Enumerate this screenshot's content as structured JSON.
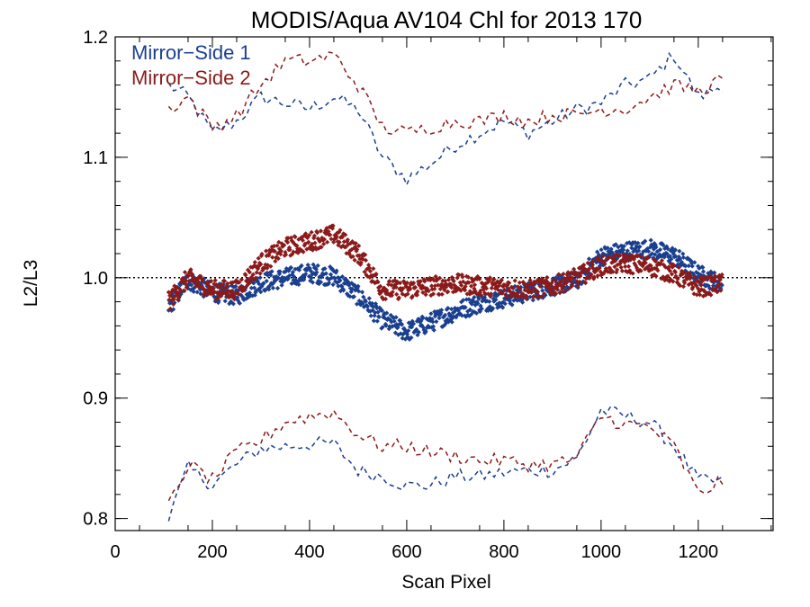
{
  "chart_data": {
    "type": "scatter",
    "title": "MODIS/Aqua AV104 Chl for 2013 170",
    "xlabel": "Scan Pixel",
    "ylabel": "L2/L3",
    "xlim": [
      0,
      1354
    ],
    "ylim": [
      0.79,
      1.2
    ],
    "x_ticks": [
      "0",
      "200",
      "400",
      "600",
      "800",
      "1000",
      "1200"
    ],
    "y_ticks": [
      "0.8",
      "0.9",
      "1.0",
      "1.1",
      "1.2"
    ],
    "reference_line": {
      "y": 1.0,
      "style": "dotted",
      "color": "#000000"
    },
    "legend": {
      "placement": "top-left",
      "entries": [
        {
          "label": "Mirror−Side 1",
          "color": "#1a3f8f"
        },
        {
          "label": "Mirror−Side 2",
          "color": "#8b1a1a"
        }
      ]
    },
    "x": [
      110,
      150,
      200,
      250,
      300,
      350,
      400,
      450,
      500,
      550,
      600,
      650,
      700,
      750,
      800,
      850,
      900,
      950,
      1000,
      1050,
      1100,
      1150,
      1200,
      1250
    ],
    "series": [
      {
        "name": "Mirror−Side 1",
        "color": "#1a3f8f",
        "mean": [
          0.976,
          0.998,
          0.988,
          0.985,
          0.996,
          1.0,
          1.004,
          1.001,
          0.985,
          0.965,
          0.955,
          0.963,
          0.972,
          0.979,
          0.983,
          0.988,
          0.993,
          0.998,
          1.018,
          1.022,
          1.024,
          1.018,
          1.003,
          0.994
        ],
        "upper": [
          1.16,
          1.15,
          1.12,
          1.13,
          1.15,
          1.145,
          1.14,
          1.15,
          1.14,
          1.1,
          1.082,
          1.095,
          1.11,
          1.12,
          1.13,
          1.12,
          1.13,
          1.14,
          1.145,
          1.16,
          1.165,
          1.185,
          1.15,
          1.16
        ],
        "lower": [
          0.8,
          0.842,
          0.828,
          0.845,
          0.858,
          0.86,
          0.862,
          0.862,
          0.84,
          0.835,
          0.827,
          0.828,
          0.835,
          0.835,
          0.838,
          0.84,
          0.84,
          0.85,
          0.89,
          0.885,
          0.88,
          0.86,
          0.832,
          0.83
        ]
      },
      {
        "name": "Mirror−Side 2",
        "color": "#8b1a1a",
        "mean": [
          0.98,
          1.0,
          0.99,
          0.99,
          1.012,
          1.025,
          1.03,
          1.036,
          1.02,
          0.99,
          0.99,
          0.993,
          0.995,
          0.993,
          0.992,
          0.99,
          0.993,
          1.0,
          1.01,
          1.012,
          1.01,
          1.003,
          0.992,
          0.995
        ],
        "upper": [
          1.14,
          1.15,
          1.125,
          1.135,
          1.16,
          1.18,
          1.18,
          1.185,
          1.16,
          1.125,
          1.12,
          1.125,
          1.13,
          1.13,
          1.135,
          1.13,
          1.135,
          1.135,
          1.14,
          1.14,
          1.15,
          1.16,
          1.155,
          1.165
        ],
        "lower": [
          0.81,
          0.845,
          0.832,
          0.855,
          0.865,
          0.88,
          0.885,
          0.888,
          0.87,
          0.86,
          0.86,
          0.855,
          0.852,
          0.848,
          0.848,
          0.845,
          0.845,
          0.85,
          0.885,
          0.878,
          0.876,
          0.86,
          0.82,
          0.832
        ]
      }
    ]
  }
}
